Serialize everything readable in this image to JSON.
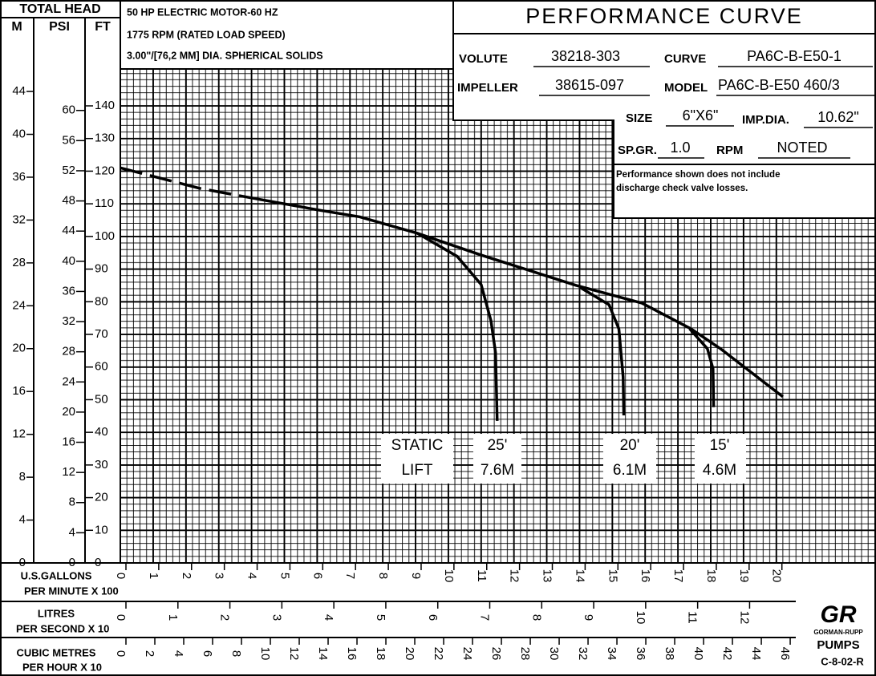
{
  "header": {
    "total_head": "TOTAL HEAD",
    "units": [
      "M",
      "PSI",
      "FT"
    ],
    "motor": [
      "50 HP ELECTRIC MOTOR-60 HZ",
      "1775 RPM (RATED LOAD SPEED)",
      "3.00\"/[76,2 MM] DIA. SPHERICAL SOLIDS"
    ],
    "title": "PERFORMANCE CURVE",
    "fields": [
      {
        "label": "VOLUTE",
        "value": "38218-303"
      },
      {
        "label": "CURVE",
        "value": "PA6C-B-E50-1"
      },
      {
        "label": "IMPELLER",
        "value": "38615-097"
      },
      {
        "label": "MODEL",
        "value": "PA6C-B-E50 460/3"
      },
      {
        "label": "SIZE",
        "value": "6\"X6\""
      },
      {
        "label": "IMP.DIA.",
        "value": "10.62\""
      },
      {
        "label": "SP.GR.",
        "value": "1.0"
      },
      {
        "label": "RPM",
        "value": "NOTED"
      }
    ],
    "note": [
      "Performance shown does not include",
      "discharge check valve losses."
    ],
    "logo": [
      "GR",
      "GORMAN-RUPP",
      "PUMPS"
    ],
    "code": "C-8-02-R"
  },
  "chart_data": {
    "type": "line",
    "xlim": [
      0,
      23.04
    ],
    "xticks": [
      0,
      1,
      2,
      3,
      4,
      5,
      6,
      7,
      8,
      9,
      10,
      11,
      12,
      13,
      14,
      15,
      16,
      17,
      18,
      19,
      20
    ],
    "x_label": [
      "U.S.GALLONS",
      "PER MINUTE X 100"
    ],
    "xlim_lps": [
      0,
      14.54
    ],
    "xticks_lps": [
      0,
      1,
      2,
      3,
      4,
      5,
      6,
      7,
      8,
      9,
      10,
      11,
      12
    ],
    "x_label_lps": [
      "LITRES",
      "PER SECOND X 10"
    ],
    "xlim_m3h": [
      0,
      52.33
    ],
    "xticks_m3h": [
      0,
      2,
      4,
      6,
      8,
      10,
      12,
      14,
      16,
      18,
      20,
      22,
      24,
      26,
      28,
      30,
      32,
      34,
      36,
      38,
      40,
      42,
      44,
      46
    ],
    "x_label_m3h": [
      "CUBIC METRES",
      "PER HOUR X 10"
    ],
    "ylim": [
      0,
      151.3
    ],
    "yticks": [
      0,
      10,
      20,
      30,
      40,
      50,
      60,
      70,
      80,
      90,
      100,
      110,
      120,
      130,
      140
    ],
    "ylim_m": [
      0,
      46.1
    ],
    "yticks_m": [
      0,
      4,
      8,
      12,
      16,
      20,
      24,
      28,
      32,
      36,
      40,
      44
    ],
    "ylim_psi": [
      0,
      65.5
    ],
    "yticks_psi": [
      0,
      4,
      8,
      12,
      16,
      20,
      24,
      28,
      32,
      36,
      40,
      44,
      48,
      52,
      56,
      60
    ],
    "grid": true,
    "series": [
      {
        "color": "#000000",
        "style": "dashed",
        "x": [
          0,
          2.44,
          4.0
        ],
        "values": [
          121,
          114.7,
          111.8
        ]
      },
      {
        "color": "#000000",
        "style": "solid",
        "x": [
          4.0,
          6.1,
          7.3,
          9.05,
          11.0,
          13.9,
          15.9,
          17.4,
          18.3,
          20.2
        ],
        "values": [
          111.8,
          108,
          106,
          101,
          94.3,
          85,
          79.6,
          71.7,
          65.6,
          50.9
        ]
      },
      {
        "color": "#000000",
        "style": "solid",
        "x": [
          9.05,
          10.27,
          11.0,
          11.3,
          11.44,
          11.49
        ],
        "values": [
          101,
          93.9,
          85.3,
          74.2,
          64.4,
          43.5
        ]
      },
      {
        "color": "#000000",
        "style": "solid",
        "x": [
          14.0,
          14.9,
          15.2,
          15.33,
          15.35
        ],
        "values": [
          84.5,
          79.1,
          71.7,
          57,
          45.2
        ]
      },
      {
        "color": "#000000",
        "style": "solid",
        "x": [
          17.36,
          17.9,
          18.07,
          18.09
        ],
        "values": [
          71.7,
          65.6,
          59.5,
          47.7
        ]
      }
    ],
    "annotations": [
      "STATIC",
      "LIFT",
      "25'",
      "7.6M",
      "20'",
      "6.1M",
      "15'",
      "4.6M"
    ]
  }
}
